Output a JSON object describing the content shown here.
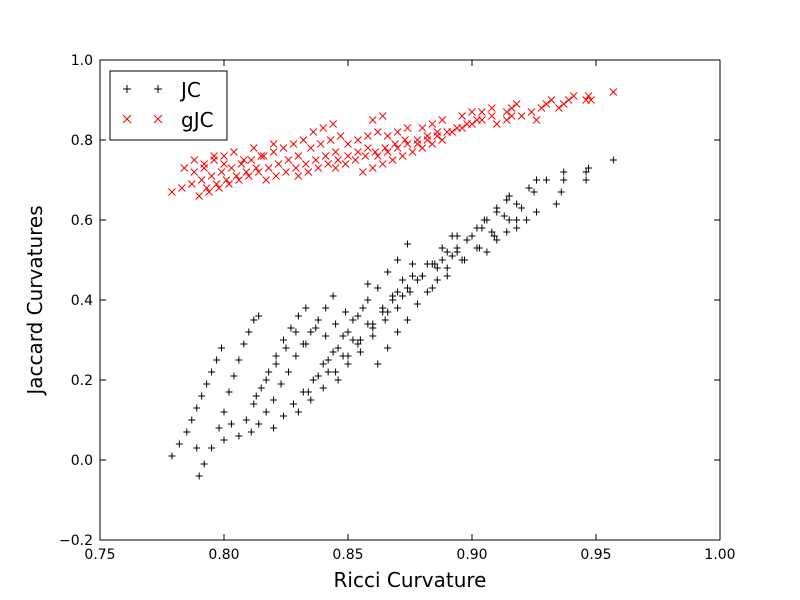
{
  "chart_data": {
    "type": "scatter",
    "title": "",
    "xlabel": "Ricci Curvature",
    "ylabel": "Jaccard Curvatures",
    "xlim": [
      0.75,
      1.0
    ],
    "ylim": [
      -0.2,
      1.0
    ],
    "xticks": [
      "0.75",
      "0.80",
      "0.85",
      "0.90",
      "0.95",
      "1.00"
    ],
    "yticks": [
      "−0.2",
      "0.0",
      "0.2",
      "0.4",
      "0.6",
      "0.8",
      "1.0"
    ],
    "grid": false,
    "legend": {
      "position": "top-left"
    },
    "series": [
      {
        "name": "JC",
        "marker": "plus",
        "color": "#000000",
        "points": [
          [
            0.779,
            0.01
          ],
          [
            0.782,
            0.04
          ],
          [
            0.785,
            0.07
          ],
          [
            0.787,
            0.1
          ],
          [
            0.789,
            0.13
          ],
          [
            0.79,
            -0.04
          ],
          [
            0.791,
            0.16
          ],
          [
            0.793,
            0.19
          ],
          [
            0.795,
            0.22
          ],
          [
            0.797,
            0.25
          ],
          [
            0.799,
            0.28
          ],
          [
            0.789,
            0.03
          ],
          [
            0.792,
            -0.01
          ],
          [
            0.795,
            0.03
          ],
          [
            0.798,
            0.08
          ],
          [
            0.8,
            0.12
          ],
          [
            0.802,
            0.17
          ],
          [
            0.804,
            0.21
          ],
          [
            0.806,
            0.25
          ],
          [
            0.808,
            0.29
          ],
          [
            0.81,
            0.32
          ],
          [
            0.812,
            0.35
          ],
          [
            0.814,
            0.36
          ],
          [
            0.8,
            0.05
          ],
          [
            0.803,
            0.09
          ],
          [
            0.806,
            0.06
          ],
          [
            0.809,
            0.1
          ],
          [
            0.812,
            0.14
          ],
          [
            0.815,
            0.18
          ],
          [
            0.818,
            0.22
          ],
          [
            0.821,
            0.26
          ],
          [
            0.824,
            0.3
          ],
          [
            0.827,
            0.33
          ],
          [
            0.83,
            0.36
          ],
          [
            0.833,
            0.38
          ],
          [
            0.811,
            0.07
          ],
          [
            0.814,
            0.09
          ],
          [
            0.817,
            0.12
          ],
          [
            0.82,
            0.15
          ],
          [
            0.823,
            0.19
          ],
          [
            0.826,
            0.22
          ],
          [
            0.829,
            0.26
          ],
          [
            0.832,
            0.29
          ],
          [
            0.835,
            0.32
          ],
          [
            0.838,
            0.35
          ],
          [
            0.841,
            0.38
          ],
          [
            0.844,
            0.41
          ],
          [
            0.82,
            0.08
          ],
          [
            0.824,
            0.11
          ],
          [
            0.828,
            0.14
          ],
          [
            0.832,
            0.17
          ],
          [
            0.836,
            0.2
          ],
          [
            0.84,
            0.24
          ],
          [
            0.844,
            0.27
          ],
          [
            0.848,
            0.31
          ],
          [
            0.852,
            0.35
          ],
          [
            0.856,
            0.38
          ],
          [
            0.858,
            0.44
          ],
          [
            0.83,
            0.12
          ],
          [
            0.835,
            0.15
          ],
          [
            0.84,
            0.18
          ],
          [
            0.845,
            0.22
          ],
          [
            0.85,
            0.26
          ],
          [
            0.855,
            0.3
          ],
          [
            0.86,
            0.34
          ],
          [
            0.864,
            0.37
          ],
          [
            0.868,
            0.41
          ],
          [
            0.872,
            0.45
          ],
          [
            0.876,
            0.49
          ],
          [
            0.842,
            0.22
          ],
          [
            0.848,
            0.26
          ],
          [
            0.854,
            0.29
          ],
          [
            0.86,
            0.33
          ],
          [
            0.866,
            0.37
          ],
          [
            0.872,
            0.41
          ],
          [
            0.878,
            0.45
          ],
          [
            0.884,
            0.49
          ],
          [
            0.888,
            0.53
          ],
          [
            0.892,
            0.56
          ],
          [
            0.852,
            0.3
          ],
          [
            0.858,
            0.34
          ],
          [
            0.864,
            0.38
          ],
          [
            0.87,
            0.42
          ],
          [
            0.876,
            0.46
          ],
          [
            0.882,
            0.49
          ],
          [
            0.888,
            0.5
          ],
          [
            0.894,
            0.53
          ],
          [
            0.9,
            0.56
          ],
          [
            0.905,
            0.6
          ],
          [
            0.868,
            0.4
          ],
          [
            0.874,
            0.43
          ],
          [
            0.88,
            0.46
          ],
          [
            0.886,
            0.48
          ],
          [
            0.892,
            0.51
          ],
          [
            0.898,
            0.55
          ],
          [
            0.904,
            0.58
          ],
          [
            0.91,
            0.62
          ],
          [
            0.915,
            0.66
          ],
          [
            0.884,
            0.43
          ],
          [
            0.89,
            0.46
          ],
          [
            0.896,
            0.5
          ],
          [
            0.902,
            0.53
          ],
          [
            0.908,
            0.57
          ],
          [
            0.913,
            0.61
          ],
          [
            0.918,
            0.64
          ],
          [
            0.923,
            0.68
          ],
          [
            0.926,
            0.7
          ],
          [
            0.897,
            0.5
          ],
          [
            0.903,
            0.53
          ],
          [
            0.909,
            0.56
          ],
          [
            0.915,
            0.6
          ],
          [
            0.92,
            0.63
          ],
          [
            0.925,
            0.67
          ],
          [
            0.93,
            0.7
          ],
          [
            0.934,
            0.64
          ],
          [
            0.936,
            0.67
          ],
          [
            0.937,
            0.7
          ],
          [
            0.937,
            0.72
          ],
          [
            0.946,
            0.7
          ],
          [
            0.946,
            0.72
          ],
          [
            0.947,
            0.73
          ],
          [
            0.957,
            0.75
          ],
          [
            0.834,
            0.17
          ],
          [
            0.838,
            0.21
          ],
          [
            0.842,
            0.25
          ],
          [
            0.846,
            0.28
          ],
          [
            0.85,
            0.32
          ],
          [
            0.854,
            0.36
          ],
          [
            0.858,
            0.4
          ],
          [
            0.862,
            0.43
          ],
          [
            0.866,
            0.47
          ],
          [
            0.87,
            0.5
          ],
          [
            0.874,
            0.54
          ],
          [
            0.846,
            0.2
          ],
          [
            0.85,
            0.24
          ],
          [
            0.855,
            0.27
          ],
          [
            0.86,
            0.31
          ],
          [
            0.865,
            0.35
          ],
          [
            0.87,
            0.38
          ],
          [
            0.875,
            0.42
          ],
          [
            0.88,
            0.46
          ],
          [
            0.885,
            0.49
          ],
          [
            0.89,
            0.52
          ],
          [
            0.894,
            0.56
          ],
          [
            0.813,
            0.16
          ],
          [
            0.817,
            0.2
          ],
          [
            0.821,
            0.24
          ],
          [
            0.825,
            0.28
          ],
          [
            0.829,
            0.32
          ],
          [
            0.833,
            0.29
          ],
          [
            0.837,
            0.33
          ],
          [
            0.841,
            0.31
          ],
          [
            0.845,
            0.34
          ],
          [
            0.849,
            0.37
          ],
          [
            0.862,
            0.24
          ],
          [
            0.866,
            0.28
          ],
          [
            0.87,
            0.32
          ],
          [
            0.874,
            0.35
          ],
          [
            0.878,
            0.39
          ],
          [
            0.882,
            0.42
          ],
          [
            0.886,
            0.45
          ],
          [
            0.89,
            0.48
          ],
          [
            0.894,
            0.52
          ],
          [
            0.898,
            0.55
          ],
          [
            0.902,
            0.58
          ],
          [
            0.906,
            0.6
          ],
          [
            0.91,
            0.63
          ],
          [
            0.914,
            0.65
          ],
          [
            0.918,
            0.58
          ],
          [
            0.922,
            0.6
          ],
          [
            0.926,
            0.62
          ],
          [
            0.906,
            0.52
          ],
          [
            0.91,
            0.55
          ],
          [
            0.914,
            0.57
          ],
          [
            0.918,
            0.6
          ]
        ]
      },
      {
        "name": "gJC",
        "marker": "x",
        "color": "#ff0000",
        "points": [
          [
            0.779,
            0.67
          ],
          [
            0.783,
            0.68
          ],
          [
            0.787,
            0.69
          ],
          [
            0.79,
            0.66
          ],
          [
            0.791,
            0.7
          ],
          [
            0.793,
            0.68
          ],
          [
            0.795,
            0.71
          ],
          [
            0.797,
            0.69
          ],
          [
            0.799,
            0.72
          ],
          [
            0.801,
            0.7
          ],
          [
            0.803,
            0.73
          ],
          [
            0.805,
            0.71
          ],
          [
            0.807,
            0.74
          ],
          [
            0.809,
            0.72
          ],
          [
            0.811,
            0.75
          ],
          [
            0.813,
            0.73
          ],
          [
            0.815,
            0.76
          ],
          [
            0.788,
            0.72
          ],
          [
            0.792,
            0.74
          ],
          [
            0.796,
            0.75
          ],
          [
            0.8,
            0.76
          ],
          [
            0.794,
            0.67
          ],
          [
            0.798,
            0.68
          ],
          [
            0.802,
            0.69
          ],
          [
            0.806,
            0.7
          ],
          [
            0.81,
            0.71
          ],
          [
            0.814,
            0.72
          ],
          [
            0.818,
            0.73
          ],
          [
            0.822,
            0.74
          ],
          [
            0.826,
            0.75
          ],
          [
            0.83,
            0.76
          ],
          [
            0.82,
            0.77
          ],
          [
            0.824,
            0.78
          ],
          [
            0.828,
            0.79
          ],
          [
            0.832,
            0.8
          ],
          [
            0.817,
            0.7
          ],
          [
            0.821,
            0.71
          ],
          [
            0.825,
            0.72
          ],
          [
            0.829,
            0.73
          ],
          [
            0.833,
            0.74
          ],
          [
            0.837,
            0.75
          ],
          [
            0.841,
            0.76
          ],
          [
            0.845,
            0.77
          ],
          [
            0.835,
            0.78
          ],
          [
            0.839,
            0.79
          ],
          [
            0.843,
            0.8
          ],
          [
            0.847,
            0.81
          ],
          [
            0.83,
            0.71
          ],
          [
            0.834,
            0.72
          ],
          [
            0.838,
            0.73
          ],
          [
            0.842,
            0.74
          ],
          [
            0.846,
            0.75
          ],
          [
            0.85,
            0.76
          ],
          [
            0.854,
            0.77
          ],
          [
            0.858,
            0.78
          ],
          [
            0.85,
            0.79
          ],
          [
            0.854,
            0.8
          ],
          [
            0.858,
            0.81
          ],
          [
            0.862,
            0.82
          ],
          [
            0.845,
            0.73
          ],
          [
            0.849,
            0.74
          ],
          [
            0.853,
            0.75
          ],
          [
            0.857,
            0.76
          ],
          [
            0.861,
            0.77
          ],
          [
            0.865,
            0.78
          ],
          [
            0.869,
            0.79
          ],
          [
            0.873,
            0.8
          ],
          [
            0.866,
            0.81
          ],
          [
            0.87,
            0.82
          ],
          [
            0.874,
            0.83
          ],
          [
            0.862,
            0.76
          ],
          [
            0.866,
            0.77
          ],
          [
            0.87,
            0.78
          ],
          [
            0.874,
            0.79
          ],
          [
            0.878,
            0.8
          ],
          [
            0.882,
            0.81
          ],
          [
            0.886,
            0.82
          ],
          [
            0.88,
            0.83
          ],
          [
            0.884,
            0.84
          ],
          [
            0.888,
            0.85
          ],
          [
            0.878,
            0.79
          ],
          [
            0.882,
            0.8
          ],
          [
            0.886,
            0.81
          ],
          [
            0.89,
            0.82
          ],
          [
            0.894,
            0.83
          ],
          [
            0.898,
            0.84
          ],
          [
            0.902,
            0.85
          ],
          [
            0.896,
            0.86
          ],
          [
            0.9,
            0.87
          ],
          [
            0.892,
            0.82
          ],
          [
            0.896,
            0.83
          ],
          [
            0.9,
            0.84
          ],
          [
            0.904,
            0.85
          ],
          [
            0.908,
            0.86
          ],
          [
            0.904,
            0.87
          ],
          [
            0.908,
            0.88
          ],
          [
            0.91,
            0.84
          ],
          [
            0.914,
            0.85
          ],
          [
            0.916,
            0.86
          ],
          [
            0.914,
            0.87
          ],
          [
            0.916,
            0.88
          ],
          [
            0.918,
            0.89
          ],
          [
            0.92,
            0.86
          ],
          [
            0.924,
            0.87
          ],
          [
            0.928,
            0.88
          ],
          [
            0.93,
            0.89
          ],
          [
            0.932,
            0.9
          ],
          [
            0.926,
            0.85
          ],
          [
            0.935,
            0.88
          ],
          [
            0.937,
            0.89
          ],
          [
            0.939,
            0.9
          ],
          [
            0.941,
            0.91
          ],
          [
            0.946,
            0.9
          ],
          [
            0.947,
            0.91
          ],
          [
            0.948,
            0.9
          ],
          [
            0.957,
            0.92
          ],
          [
            0.784,
            0.73
          ],
          [
            0.788,
            0.75
          ],
          [
            0.792,
            0.73
          ],
          [
            0.796,
            0.76
          ],
          [
            0.8,
            0.74
          ],
          [
            0.804,
            0.77
          ],
          [
            0.808,
            0.75
          ],
          [
            0.812,
            0.78
          ],
          [
            0.816,
            0.76
          ],
          [
            0.82,
            0.79
          ],
          [
            0.856,
            0.72
          ],
          [
            0.86,
            0.73
          ],
          [
            0.864,
            0.74
          ],
          [
            0.868,
            0.75
          ],
          [
            0.872,
            0.76
          ],
          [
            0.876,
            0.77
          ],
          [
            0.88,
            0.78
          ],
          [
            0.884,
            0.79
          ],
          [
            0.888,
            0.8
          ],
          [
            0.836,
            0.82
          ],
          [
            0.84,
            0.83
          ],
          [
            0.844,
            0.84
          ],
          [
            0.86,
            0.85
          ],
          [
            0.864,
            0.86
          ]
        ]
      }
    ]
  }
}
